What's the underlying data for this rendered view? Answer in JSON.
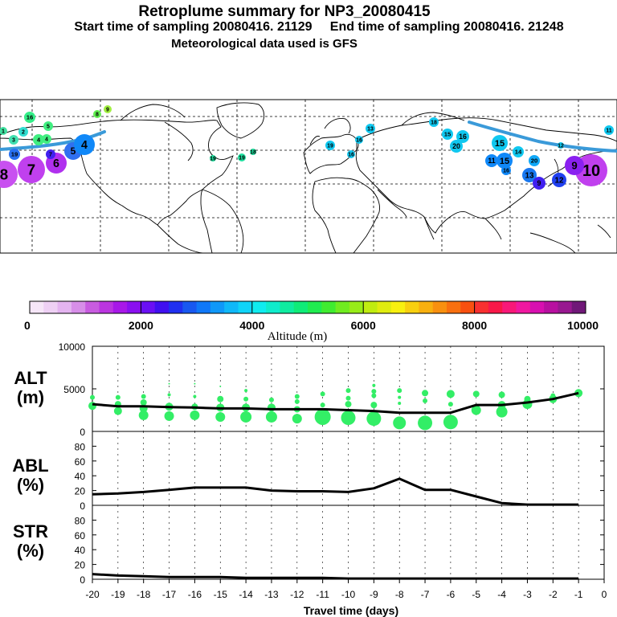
{
  "header": {
    "title": "Retroplume summary for NP3_20080415",
    "subtitle_start_label": "Start time of sampling 20080416. 21129",
    "subtitle_end_label": "End time of sampling 20080416. 21248",
    "met_line": "Meteorological data used is GFS"
  },
  "colors": {
    "trajectory": "#3a9ad9",
    "plume_green": "#33ee66",
    "line": "#000000"
  },
  "colorbar": {
    "label": "Altitude (m)",
    "tick_labels": [
      "0",
      "2000",
      "4000",
      "6000",
      "8000",
      "10000"
    ],
    "colors": [
      "#f6e6f8",
      "#eed0f4",
      "#e4b4f0",
      "#d78ee8",
      "#c85ce0",
      "#bb35e0",
      "#a818e8",
      "#8a10f0",
      "#6a10f4",
      "#4010f0",
      "#2030f0",
      "#1858f0",
      "#1078f8",
      "#1098f8",
      "#10b8f8",
      "#10d4f8",
      "#10ecf0",
      "#10eccc",
      "#10eca0",
      "#10ec78",
      "#20ec50",
      "#40ec30",
      "#70ec20",
      "#98ec18",
      "#c0ec10",
      "#e0ec10",
      "#f8f010",
      "#f8d010",
      "#f8b010",
      "#f89010",
      "#f87010",
      "#f85010",
      "#f83030",
      "#f81848",
      "#f81878",
      "#f018a0",
      "#d810b0",
      "#b810a0",
      "#981890",
      "#701878"
    ]
  },
  "map": {
    "plume_labels": [
      {
        "t": "16",
        "x": 37,
        "y": 146,
        "r": 7,
        "c": "#33ee88"
      },
      {
        "t": "9",
        "x": 134,
        "y": 136,
        "r": 5,
        "c": "#a0ee40"
      },
      {
        "t": "8",
        "x": 121,
        "y": 142,
        "r": 5,
        "c": "#60ee50"
      },
      {
        "t": "1",
        "x": 4,
        "y": 163,
        "r": 5,
        "c": "#40e0a0"
      },
      {
        "t": "2",
        "x": 29,
        "y": 164,
        "r": 6,
        "c": "#30ddd0"
      },
      {
        "t": "5",
        "x": 60,
        "y": 157,
        "r": 6,
        "c": "#40ee80"
      },
      {
        "t": "4",
        "x": 48,
        "y": 174,
        "r": 7,
        "c": "#40ee80"
      },
      {
        "t": "3",
        "x": 17,
        "y": 174,
        "r": 6,
        "c": "#40e0b0"
      },
      {
        "t": "4",
        "x": 58,
        "y": 173,
        "r": 6,
        "c": "#40ee80"
      },
      {
        "t": "19",
        "x": 18,
        "y": 192,
        "r": 7,
        "c": "#2870f0"
      },
      {
        "t": "8",
        "x": 5,
        "y": 217,
        "r": 17,
        "c": "#c850f0"
      },
      {
        "t": "7",
        "x": 39,
        "y": 211,
        "r": 17,
        "c": "#c040ee"
      },
      {
        "t": "6",
        "x": 70,
        "y": 203,
        "r": 13,
        "c": "#b030ee"
      },
      {
        "t": "5",
        "x": 91,
        "y": 188,
        "r": 11,
        "c": "#3070f0"
      },
      {
        "t": "4",
        "x": 105,
        "y": 180,
        "r": 13,
        "c": "#1088f8"
      },
      {
        "t": "7",
        "x": 63,
        "y": 192,
        "r": 6,
        "c": "#4020f0"
      },
      {
        "t": "13",
        "x": 461,
        "y": 160,
        "r": 6,
        "c": "#10c8f0"
      },
      {
        "t": "19",
        "x": 265,
        "y": 197,
        "r": 4,
        "c": "#20e0a0"
      },
      {
        "t": "19",
        "x": 301,
        "y": 196,
        "r": 5,
        "c": "#20e0a0"
      },
      {
        "t": "18",
        "x": 315,
        "y": 189,
        "r": 4,
        "c": "#20e0a0"
      },
      {
        "t": "19",
        "x": 411,
        "y": 181,
        "r": 6,
        "c": "#10c8f0"
      },
      {
        "t": "16",
        "x": 447,
        "y": 174,
        "r": 5,
        "c": "#10c8f0"
      },
      {
        "t": "16",
        "x": 437,
        "y": 192,
        "r": 5,
        "c": "#10c8f0"
      },
      {
        "t": "18",
        "x": 540,
        "y": 152,
        "r": 6,
        "c": "#10c8f0"
      },
      {
        "t": "15",
        "x": 557,
        "y": 167,
        "r": 7,
        "c": "#10c8f0"
      },
      {
        "t": "16",
        "x": 576,
        "y": 170,
        "r": 8,
        "c": "#10c8f0"
      },
      {
        "t": "20",
        "x": 568,
        "y": 182,
        "r": 8,
        "c": "#10c8f0"
      },
      {
        "t": "15",
        "x": 622,
        "y": 178,
        "r": 10,
        "c": "#10c8f0"
      },
      {
        "t": "14",
        "x": 645,
        "y": 189,
        "r": 7,
        "c": "#10c8f0"
      },
      {
        "t": "20",
        "x": 665,
        "y": 200,
        "r": 7,
        "c": "#10a8f8"
      },
      {
        "t": "15",
        "x": 628,
        "y": 200,
        "r": 10,
        "c": "#1088f8"
      },
      {
        "t": "11",
        "x": 612,
        "y": 200,
        "r": 8,
        "c": "#1088f8"
      },
      {
        "t": "13",
        "x": 659,
        "y": 218,
        "r": 9,
        "c": "#1878f0"
      },
      {
        "t": "12",
        "x": 696,
        "y": 224,
        "r": 9,
        "c": "#2040f0"
      },
      {
        "t": "9",
        "x": 671,
        "y": 228,
        "r": 8,
        "c": "#4020f0"
      },
      {
        "t": "16",
        "x": 630,
        "y": 212,
        "r": 6,
        "c": "#1088f8"
      },
      {
        "t": "10",
        "x": 736,
        "y": 212,
        "r": 20,
        "c": "#c040ee"
      },
      {
        "t": "9",
        "x": 715,
        "y": 206,
        "r": 12,
        "c": "#8a20f0"
      },
      {
        "t": "12",
        "x": 698,
        "y": 181,
        "r": 4,
        "c": "#10c8f0"
      },
      {
        "t": "11",
        "x": 758,
        "y": 162,
        "r": 6,
        "c": "#10c8f0"
      }
    ]
  },
  "chart_data": [
    {
      "type": "line",
      "title": "ALT",
      "ylabel": "ALT (m)",
      "ylabel_lines": [
        "ALT",
        "(m)"
      ],
      "xlabel": "Travel time (days)",
      "ylim": [
        0,
        10000
      ],
      "y_ticks": [
        "10000",
        "5000",
        "0"
      ],
      "y_tick_values": [
        10000,
        5000,
        0
      ],
      "x": [
        -20,
        -19,
        -18,
        -17,
        -16,
        -15,
        -14,
        -13,
        -12,
        -11,
        -10,
        -9,
        -8,
        -7,
        -6,
        -5,
        -4,
        -3,
        -2,
        -1
      ],
      "values": [
        3200,
        2950,
        2950,
        2850,
        2800,
        2700,
        2700,
        2600,
        2600,
        2600,
        2500,
        2400,
        2200,
        2200,
        2200,
        3100,
        3100,
        3400,
        3800,
        4500
      ],
      "scatter": [
        {
          "x": -20,
          "y": 3000,
          "s": 5
        },
        {
          "x": -20,
          "y": 4000,
          "s": 3
        },
        {
          "x": -19,
          "y": 2400,
          "s": 5
        },
        {
          "x": -19,
          "y": 3200,
          "s": 4
        },
        {
          "x": -19,
          "y": 4000,
          "s": 3
        },
        {
          "x": -18,
          "y": 1900,
          "s": 6
        },
        {
          "x": -18,
          "y": 2700,
          "s": 5
        },
        {
          "x": -18,
          "y": 3400,
          "s": 4
        },
        {
          "x": -18,
          "y": 4100,
          "s": 3
        },
        {
          "x": -17,
          "y": 1800,
          "s": 6
        },
        {
          "x": -17,
          "y": 2900,
          "s": 5
        },
        {
          "x": -17,
          "y": 4300,
          "s": 2
        },
        {
          "x": -17,
          "y": 5600,
          "s": 1
        },
        {
          "x": -16,
          "y": 1900,
          "s": 6
        },
        {
          "x": -16,
          "y": 2900,
          "s": 4
        },
        {
          "x": -16,
          "y": 4100,
          "s": 2
        },
        {
          "x": -16,
          "y": 5600,
          "s": 1
        },
        {
          "x": -15,
          "y": 1700,
          "s": 6
        },
        {
          "x": -15,
          "y": 2800,
          "s": 5
        },
        {
          "x": -15,
          "y": 3800,
          "s": 4
        },
        {
          "x": -15,
          "y": 5300,
          "s": 1
        },
        {
          "x": -14,
          "y": 1700,
          "s": 7
        },
        {
          "x": -14,
          "y": 2800,
          "s": 5
        },
        {
          "x": -14,
          "y": 3800,
          "s": 3
        },
        {
          "x": -14,
          "y": 4800,
          "s": 2
        },
        {
          "x": -13,
          "y": 1700,
          "s": 7
        },
        {
          "x": -13,
          "y": 2800,
          "s": 5
        },
        {
          "x": -13,
          "y": 3700,
          "s": 3
        },
        {
          "x": -12,
          "y": 1500,
          "s": 6
        },
        {
          "x": -12,
          "y": 2600,
          "s": 4
        },
        {
          "x": -12,
          "y": 3500,
          "s": 3
        },
        {
          "x": -12,
          "y": 4100,
          "s": 3
        },
        {
          "x": -11,
          "y": 1700,
          "s": 10
        },
        {
          "x": -11,
          "y": 3100,
          "s": 3
        },
        {
          "x": -11,
          "y": 4400,
          "s": 3
        },
        {
          "x": -10,
          "y": 1600,
          "s": 9
        },
        {
          "x": -10,
          "y": 3200,
          "s": 4
        },
        {
          "x": -10,
          "y": 3900,
          "s": 3
        },
        {
          "x": -10,
          "y": 4800,
          "s": 3
        },
        {
          "x": -9,
          "y": 1500,
          "s": 9
        },
        {
          "x": -9,
          "y": 3100,
          "s": 4
        },
        {
          "x": -9,
          "y": 4200,
          "s": 3
        },
        {
          "x": -9,
          "y": 4700,
          "s": 3
        },
        {
          "x": -9,
          "y": 5400,
          "s": 2
        },
        {
          "x": -8,
          "y": 1000,
          "s": 8
        },
        {
          "x": -8,
          "y": 3300,
          "s": 2
        },
        {
          "x": -8,
          "y": 4000,
          "s": 2
        },
        {
          "x": -8,
          "y": 4800,
          "s": 3
        },
        {
          "x": -7,
          "y": 1000,
          "s": 9
        },
        {
          "x": -7,
          "y": 3600,
          "s": 3
        },
        {
          "x": -7,
          "y": 4500,
          "s": 4
        },
        {
          "x": -6,
          "y": 1100,
          "s": 9
        },
        {
          "x": -6,
          "y": 3200,
          "s": 3
        },
        {
          "x": -6,
          "y": 4400,
          "s": 5
        },
        {
          "x": -5,
          "y": 2500,
          "s": 6
        },
        {
          "x": -5,
          "y": 4400,
          "s": 4
        },
        {
          "x": -4,
          "y": 2300,
          "s": 7
        },
        {
          "x": -4,
          "y": 3100,
          "s": 5
        },
        {
          "x": -4,
          "y": 4300,
          "s": 4
        },
        {
          "x": -3,
          "y": 3200,
          "s": 6
        },
        {
          "x": -3,
          "y": 3800,
          "s": 4
        },
        {
          "x": -2,
          "y": 3800,
          "s": 5
        },
        {
          "x": -2,
          "y": 4200,
          "s": 3
        },
        {
          "x": -1,
          "y": 4500,
          "s": 5
        }
      ]
    },
    {
      "type": "line",
      "title": "ABL",
      "ylabel": "ABL (%)",
      "ylabel_lines": [
        "ABL",
        "(%)"
      ],
      "ylim": [
        0,
        100
      ],
      "y_ticks": [
        "80",
        "60",
        "40",
        "20",
        "0"
      ],
      "y_tick_values": [
        80,
        60,
        40,
        20,
        0
      ],
      "x": [
        -20,
        -19,
        -18,
        -17,
        -16,
        -15,
        -14,
        -13,
        -12,
        -11,
        -10,
        -9,
        -8,
        -7,
        -6,
        -5,
        -4,
        -3,
        -2,
        -1
      ],
      "values": [
        15,
        16,
        18,
        21,
        24,
        24,
        24,
        20,
        19,
        19,
        18,
        23,
        36,
        21,
        21,
        12,
        3,
        1,
        1,
        1
      ]
    },
    {
      "type": "line",
      "title": "STR",
      "ylabel": "STR (%)",
      "ylabel_lines": [
        "STR",
        "(%)"
      ],
      "ylim": [
        0,
        100
      ],
      "y_ticks": [
        "80",
        "60",
        "40",
        "20",
        "0"
      ],
      "y_tick_values": [
        80,
        60,
        40,
        20,
        0
      ],
      "x": [
        -20,
        -19,
        -18,
        -17,
        -16,
        -15,
        -14,
        -13,
        -12,
        -11,
        -10,
        -9,
        -8,
        -7,
        -6,
        -5,
        -4,
        -3,
        -2,
        -1
      ],
      "values": [
        7,
        5,
        4,
        3,
        3,
        3,
        2,
        2,
        2,
        2,
        1,
        1,
        1,
        1,
        1,
        1,
        1,
        1,
        1,
        1
      ]
    }
  ],
  "x_axis": {
    "label": "Travel time (days)",
    "tick_labels": [
      "-20",
      "-19",
      "-18",
      "-17",
      "-16",
      "-15",
      "-14",
      "-13",
      "-12",
      "-11",
      "-10",
      "-9",
      "-8",
      "-7",
      "-6",
      "-5",
      "-4",
      "-3",
      "-2",
      "-1",
      "0"
    ]
  }
}
